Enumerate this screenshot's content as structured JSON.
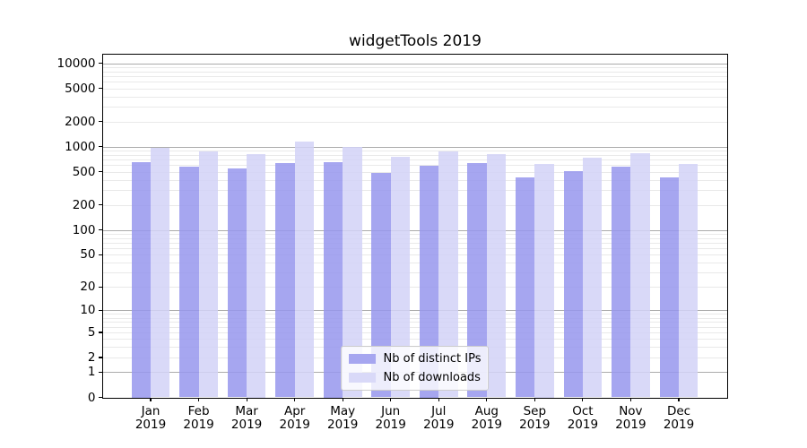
{
  "chart_data": {
    "type": "bar",
    "title": "widgetTools 2019",
    "categories": [
      "Jan",
      "Feb",
      "Mar",
      "Apr",
      "May",
      "Jun",
      "Jul",
      "Aug",
      "Sep",
      "Oct",
      "Nov",
      "Dec"
    ],
    "x_tick_second_line": "2019",
    "series": [
      {
        "name": "Nb of distinct IPs",
        "color": "#a6a6f0",
        "values": [
          660,
          575,
          550,
          635,
          660,
          480,
          590,
          630,
          430,
          505,
          575,
          430
        ]
      },
      {
        "name": "Nb of downloads",
        "color": "#d9d9f8",
        "values": [
          960,
          870,
          825,
          1150,
          1000,
          750,
          870,
          810,
          620,
          735,
          840,
          615
        ]
      }
    ],
    "yscale": "log(value+1)",
    "ylim": [
      0,
      12800
    ],
    "y_ticks": [
      10000,
      5000,
      2000,
      1000,
      500,
      200,
      100,
      50,
      20,
      10,
      5,
      2,
      1,
      0
    ],
    "grid": "major+minor horizontal",
    "legend_position": "lower center"
  },
  "colors": {
    "grid_major": "#ababab",
    "grid_minor": "#e9e9e9",
    "axis_spine": "#000000",
    "legend_border": "#cccccc",
    "background": "#ffffff"
  }
}
